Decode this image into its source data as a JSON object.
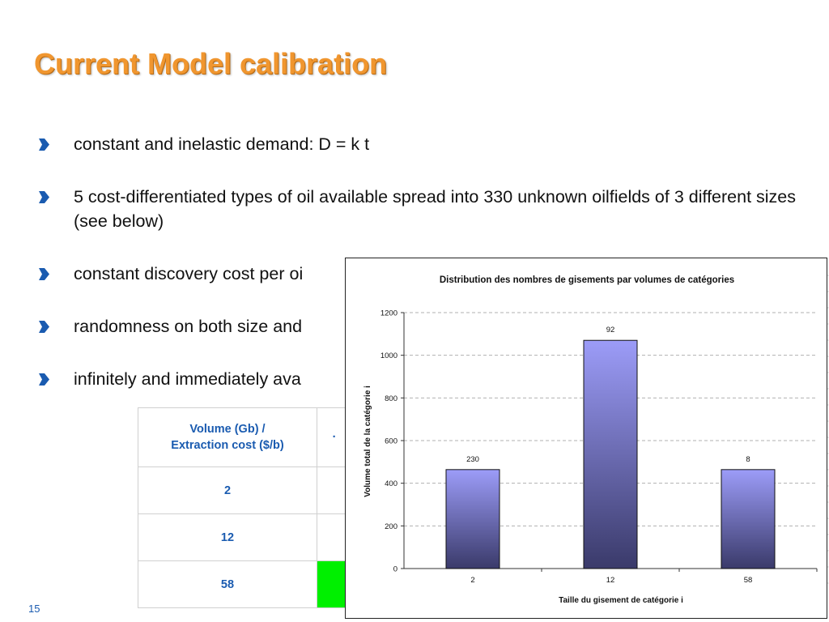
{
  "slide": {
    "title": "Current Model calibration",
    "page_number": "15",
    "bullets": [
      "constant and inelastic demand: D = k t",
      "5 cost-differentiated types of oil available spread into 330 unknown oilfields of 3 different sizes (see below)",
      "constant discovery cost per oi",
      "randomness on both size and",
      "infinitely and immediately ava"
    ]
  },
  "table": {
    "header_line1": "Volume (Gb) /",
    "header_line2": "Extraction cost ($/b)",
    "rows": [
      "2",
      "12",
      "58"
    ]
  },
  "chart_data": {
    "type": "bar",
    "title": "Distribution des nombres de gisements par volumes de catégories",
    "xlabel": "Taille du gisement de catégorie i",
    "ylabel": "Volume total de la catégorie i",
    "categories": [
      "2",
      "12",
      "58"
    ],
    "values": [
      464,
      1070,
      464
    ],
    "data_labels": [
      "230",
      "92",
      "8"
    ],
    "ylim": [
      0,
      1200
    ],
    "yticks": [
      0,
      200,
      400,
      600,
      800,
      1000,
      1200
    ],
    "grid": true,
    "bar_color_top": "#9c9cf8",
    "bar_color_bottom": "#3a3a6a"
  }
}
